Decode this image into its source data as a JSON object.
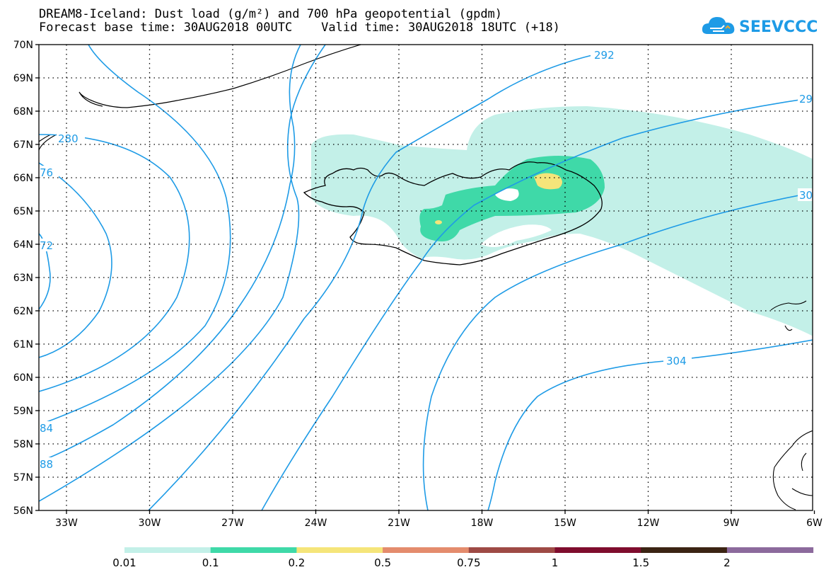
{
  "title_line1": "DREAM8-Iceland: Dust load (g/m²) and 700 hPa geopotential (gpdm)",
  "title_line2": "Forecast base time: 30AUG2018 00UTC    Valid time: 30AUG2018 18UTC (+18)",
  "logo_text": "SEEVCCC",
  "lat_labels": [
    "70N",
    "69N",
    "68N",
    "67N",
    "66N",
    "65N",
    "64N",
    "63N",
    "62N",
    "61N",
    "60N",
    "59N",
    "58N",
    "57N",
    "56N"
  ],
  "lon_labels": [
    "33W",
    "30W",
    "27W",
    "24W",
    "21W",
    "18W",
    "15W",
    "12W",
    "9W",
    "6W"
  ],
  "contour_labels": [
    "292",
    "29",
    "280",
    "76",
    "72",
    "84",
    "88",
    "30",
    "304"
  ],
  "colorbar": {
    "ticks": [
      "0.01",
      "0.1",
      "0.2",
      "0.5",
      "0.75",
      "1",
      "1.5",
      "2"
    ],
    "colors": [
      "#c3f0e8",
      "#3fd9a8",
      "#f5e57a",
      "#e48c6d",
      "#9e4a45",
      "#7f0d2e",
      "#3b2413",
      "#8c6a9c"
    ]
  },
  "colors": {
    "contour": "#1e9be6",
    "dust_low": "#c3f0e8",
    "dust_mid": "#3fd9a8",
    "dust_high": "#f5e57a",
    "coast": "#000000"
  }
}
